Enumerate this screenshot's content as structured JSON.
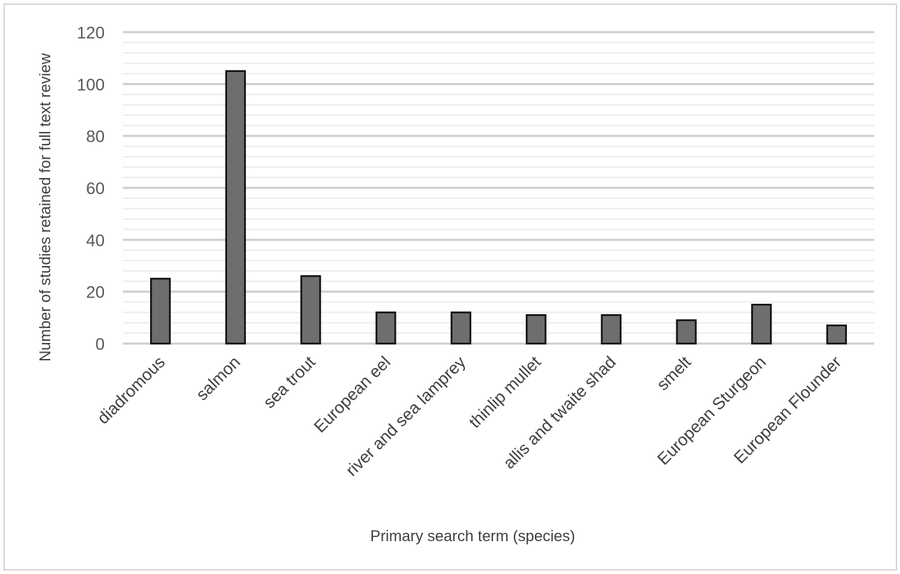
{
  "chart_data": {
    "type": "bar",
    "title": "",
    "xlabel": "Primary search term (species)",
    "ylabel": "Number of studies retained for full text review",
    "categories": [
      "diadromous",
      "salmon",
      "sea trout",
      "European eel",
      "river and sea lamprey",
      "thinlip mullet",
      "allis and twaite shad",
      "smelt",
      "European Sturgeon",
      "European Flounder"
    ],
    "values": [
      25,
      105,
      26,
      12,
      12,
      11,
      11,
      9,
      15,
      7
    ],
    "ylim": [
      0,
      120
    ],
    "yticks": [
      0,
      20,
      40,
      60,
      80,
      100,
      120
    ],
    "grid": "major and minor horizontal",
    "legend": "none",
    "colors": {
      "bar_fill": "#6e6e6e",
      "bar_stroke": "#111111",
      "major_grid": "#cfcfcf",
      "minor_grid": "#ececec"
    }
  }
}
